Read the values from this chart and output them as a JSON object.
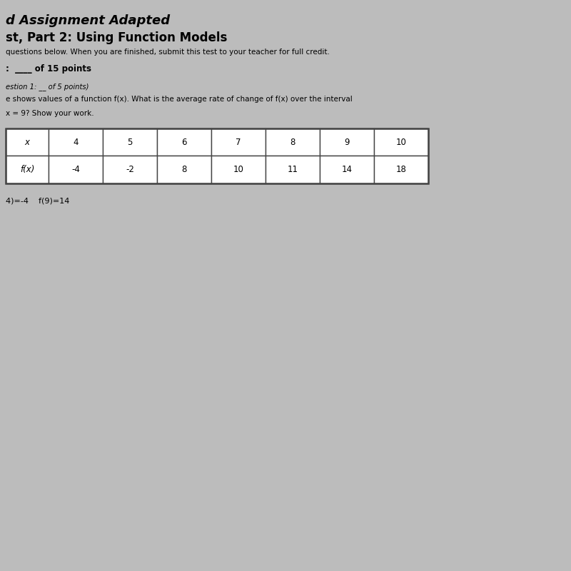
{
  "title_line1": "d Assignment Adapted",
  "title_line2": "st, Part 2: Using Function Models",
  "subtitle": "questions below. When you are finished, submit this test to your teacher for full credit.",
  "score_label": ":  ____ of 15 points",
  "question_label": "estion 1: __ of 5 points)",
  "question_text_line1": "e shows values of a function f(x). What is the average rate of change of f(x) over the interval",
  "question_text_line2": "x = 9? Show your work.",
  "x_values": [
    "x",
    "4",
    "5",
    "6",
    "7",
    "8",
    "9",
    "10"
  ],
  "fx_values": [
    "f(x)",
    "-4",
    "-2",
    "8",
    "10",
    "11",
    "14",
    "18"
  ],
  "answer_text": "4)=-4    f(9)=14",
  "bg_color": "#bcbcbc",
  "text_color": "#000000",
  "table_border_color": "#444444",
  "title1_fontsize": 13,
  "title2_fontsize": 12,
  "subtitle_fontsize": 7.5,
  "score_fontsize": 8.5,
  "question_label_fontsize": 7.2,
  "question_text_fontsize": 7.5,
  "answer_fontsize": 8.0,
  "table_fontsize": 8.5
}
